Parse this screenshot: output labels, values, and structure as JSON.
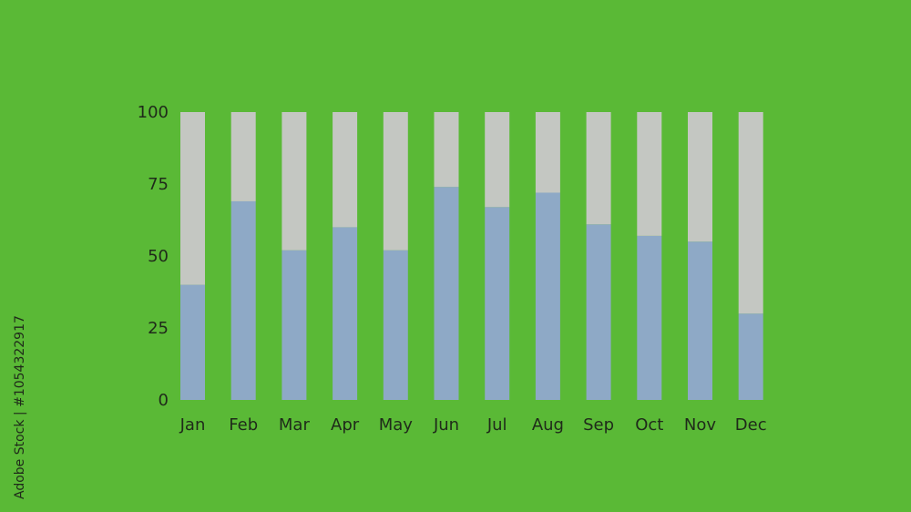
{
  "chart_data": {
    "type": "bar",
    "stacked": true,
    "categories": [
      "Jan",
      "Feb",
      "Mar",
      "Apr",
      "May",
      "Jun",
      "Jul",
      "Aug",
      "Sep",
      "Oct",
      "Nov",
      "Dec"
    ],
    "series": [
      {
        "values": [
          40,
          69,
          52,
          60,
          52,
          74,
          67,
          72,
          61,
          57,
          55,
          30
        ]
      },
      {
        "values": [
          60,
          31,
          48,
          40,
          48,
          26,
          33,
          28,
          39,
          43,
          45,
          70
        ]
      }
    ],
    "ylim": [
      0,
      100
    ],
    "yticks": [
      0,
      25,
      50,
      75,
      100
    ],
    "grid": false,
    "legend": "none"
  },
  "colors": {
    "background": "#5ab936",
    "series0": "#8ea9c6",
    "series1": "#c4c7c2"
  },
  "side_text": "Adobe Stock | #1054322917"
}
